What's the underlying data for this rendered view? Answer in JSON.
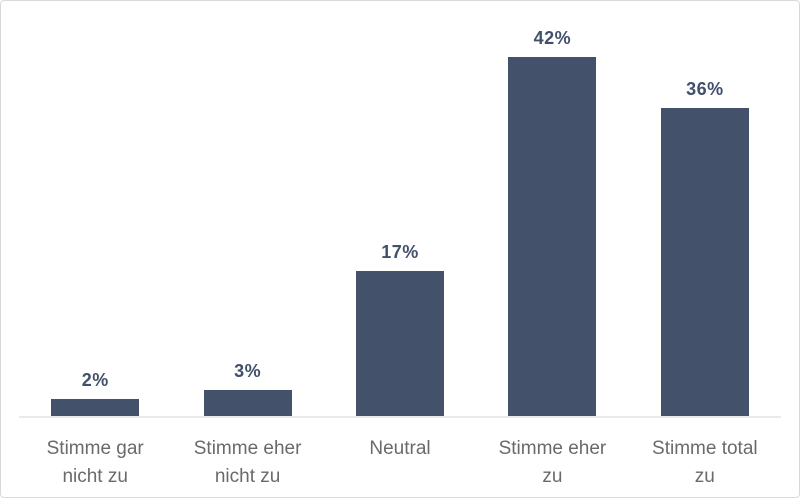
{
  "chart_data": {
    "type": "bar",
    "title": "",
    "xlabel": "",
    "ylabel": "",
    "categories": [
      "Stimme gar nicht zu",
      "Stimme eher nicht zu",
      "Neutral",
      "Stimme eher zu",
      "Stimme total zu"
    ],
    "category_lines": [
      [
        "Stimme gar",
        "nicht zu"
      ],
      [
        "Stimme eher",
        "nicht zu"
      ],
      [
        "Neutral"
      ],
      [
        "Stimme eher",
        "zu"
      ],
      [
        "Stimme total",
        "zu"
      ]
    ],
    "values": [
      2,
      3,
      17,
      42,
      36
    ],
    "value_labels": [
      "2%",
      "3%",
      "17%",
      "42%",
      "36%"
    ],
    "ylim": [
      0,
      45
    ],
    "grid": false,
    "legend": false,
    "colors": {
      "bar": "#44516A",
      "value_label": "#41506B",
      "category_label": "#6A6A6A",
      "axis_line": "#E9EAEB",
      "background": "#FFFFFF",
      "card_border": "#D7D9DB"
    }
  }
}
